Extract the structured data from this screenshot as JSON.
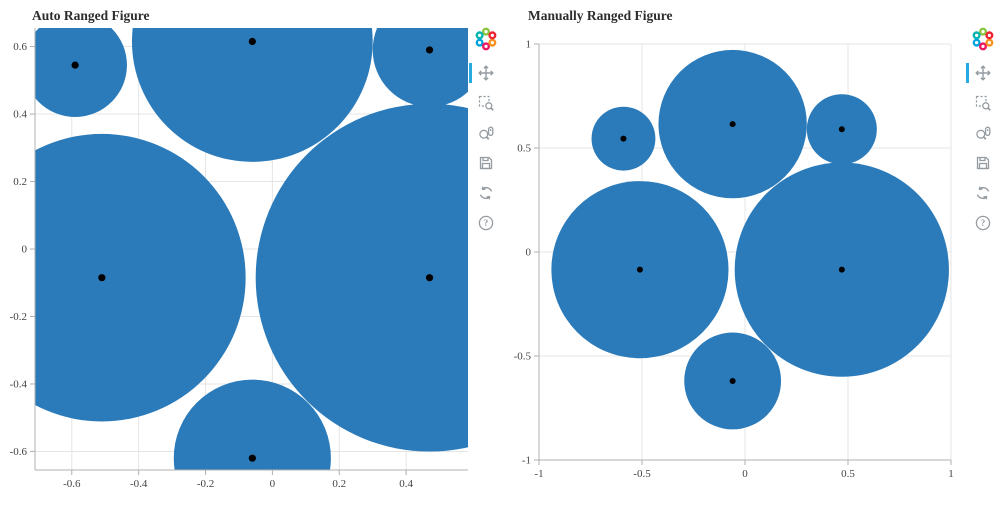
{
  "colors": {
    "glyph_fill": "#2b7bba",
    "center_dot": "#000000",
    "grid": "#e5e5e5",
    "axis": "#b0b0b0",
    "tick_label": "#444444",
    "title": "#2d2d2d",
    "toolbar_icon": "#959ca1",
    "active_tool_indicator": "#26aae1"
  },
  "toolbar": {
    "help_glyph": "?",
    "active_tool": "Pan",
    "tools": [
      {
        "name": "Pan",
        "icon": "pan-icon",
        "active": true
      },
      {
        "name": "Box Zoom",
        "icon": "box-zoom-icon",
        "active": false
      },
      {
        "name": "Wheel Zoom",
        "icon": "wheel-zoom-icon",
        "active": false
      },
      {
        "name": "Save",
        "icon": "save-icon",
        "active": false
      },
      {
        "name": "Reset",
        "icon": "reset-icon",
        "active": false
      },
      {
        "name": "Help",
        "icon": "help-icon",
        "active": false
      }
    ]
  },
  "chart_data": [
    {
      "type": "scatter",
      "title": "Auto Ranged Figure",
      "points": {
        "x": [
          -0.59,
          -0.06,
          0.47,
          -0.51,
          0.47,
          -0.06
        ],
        "y": [
          0.545,
          0.615,
          0.59,
          -0.085,
          -0.085,
          -0.62
        ],
        "radius": [
          0.155,
          0.36,
          0.17,
          0.43,
          0.52,
          0.235
        ]
      },
      "x_range": [
        -0.71,
        0.585
      ],
      "y_range": [
        -0.655,
        0.655
      ],
      "x_tick_values": [
        -0.6,
        -0.4,
        -0.2,
        0,
        0.2,
        0.4
      ],
      "x_tick_labels": [
        "-0.6",
        "-0.4",
        "-0.2",
        "0",
        "0.2",
        "0.4"
      ],
      "y_tick_values": [
        -0.6,
        -0.4,
        -0.2,
        0,
        0.2,
        0.4,
        0.6
      ],
      "y_tick_labels": [
        "-0.6",
        "-0.4",
        "-0.2",
        "0",
        "0.2",
        "0.4",
        "0.6"
      ],
      "grid": true,
      "circle_fill": "#2b7bba",
      "center_dot_color": "#000000",
      "center_dot_radius_px": 3.6
    },
    {
      "type": "scatter",
      "title": "Manually Ranged Figure",
      "points": {
        "x": [
          -0.59,
          -0.06,
          0.47,
          -0.51,
          0.47,
          -0.06
        ],
        "y": [
          0.545,
          0.615,
          0.59,
          -0.085,
          -0.085,
          -0.62
        ],
        "radius": [
          0.155,
          0.36,
          0.17,
          0.43,
          0.52,
          0.235
        ]
      },
      "x_range": [
        -1,
        1
      ],
      "y_range": [
        -1,
        1
      ],
      "x_tick_values": [
        -1,
        -0.5,
        0,
        0.5,
        1
      ],
      "x_tick_labels": [
        "-1",
        "-0.5",
        "0",
        "0.5",
        "1"
      ],
      "y_tick_values": [
        -1,
        -0.5,
        0,
        0.5,
        1
      ],
      "y_tick_labels": [
        "-1",
        "-0.5",
        "0",
        "0.5",
        "1"
      ],
      "grid": true,
      "circle_fill": "#2b7bba",
      "center_dot_color": "#000000",
      "center_dot_radius_px": 3.0
    }
  ]
}
